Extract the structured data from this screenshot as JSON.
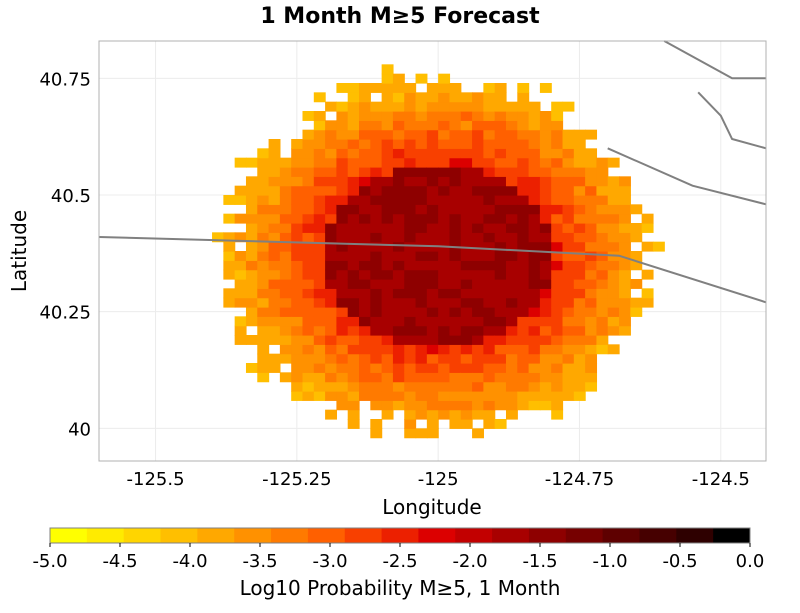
{
  "chart_data": {
    "type": "heatmap",
    "title": "1 Month M≥5 Forecast",
    "xlabel": "Longitude",
    "ylabel": "Latitude",
    "xlim": [
      -125.6,
      -124.42
    ],
    "ylim": [
      39.93,
      40.83
    ],
    "x_ticks": [
      -125.5,
      -125.25,
      -125,
      -124.75,
      -124.5
    ],
    "y_ticks": [
      40,
      40.25,
      40.5,
      40.75
    ],
    "grid": true,
    "grid_cell_deg": 0.02,
    "field": {
      "center_lon": -125.0,
      "center_lat": 40.37,
      "peak_value": -1.6,
      "core_radius_deg": 0.2,
      "falloff_per_deg": 8.5,
      "min_value": -5.0
    },
    "coverage": {
      "extent_lon": [
        -125.42,
        -124.57
      ],
      "extent_lat": [
        39.98,
        40.83
      ]
    },
    "fault_traces": [
      {
        "name": "main",
        "points": [
          [
            -125.6,
            40.41
          ],
          [
            -125.0,
            40.39
          ],
          [
            -124.68,
            40.37
          ],
          [
            -124.42,
            40.27
          ]
        ]
      },
      {
        "name": "ne-1",
        "points": [
          [
            -124.7,
            40.6
          ],
          [
            -124.55,
            40.52
          ],
          [
            -124.42,
            40.48
          ]
        ]
      },
      {
        "name": "ne-2",
        "points": [
          [
            -124.6,
            40.83
          ],
          [
            -124.48,
            40.75
          ],
          [
            -124.42,
            40.75
          ]
        ]
      },
      {
        "name": "ne-3",
        "points": [
          [
            -124.54,
            40.72
          ],
          [
            -124.5,
            40.67
          ],
          [
            -124.48,
            40.62
          ],
          [
            -124.42,
            40.6
          ]
        ]
      }
    ],
    "colorbar": {
      "label": "Log10 Probability M≥5, 1 Month",
      "range": [
        -5.0,
        0.0
      ],
      "ticks": [
        -5.0,
        -4.5,
        -4.0,
        -3.5,
        -3.0,
        -2.5,
        -2.0,
        -1.5,
        -1.0,
        -0.5,
        0.0
      ],
      "tick_labels": [
        "-5.0",
        "-4.5",
        "-4.0",
        "-3.5",
        "-3.0",
        "-2.5",
        "-2.0",
        "-1.5",
        "-1.0",
        "-0.5",
        "0.0"
      ],
      "colors": [
        "#ffff00",
        "#ffeb00",
        "#ffd500",
        "#ffbf00",
        "#ffa800",
        "#ff9100",
        "#ff7a00",
        "#ff6000",
        "#f84000",
        "#ec2000",
        "#dc0000",
        "#c20000",
        "#a80000",
        "#8e0000",
        "#760000",
        "#5e0000",
        "#460000",
        "#2e0000",
        "#000000"
      ]
    }
  }
}
